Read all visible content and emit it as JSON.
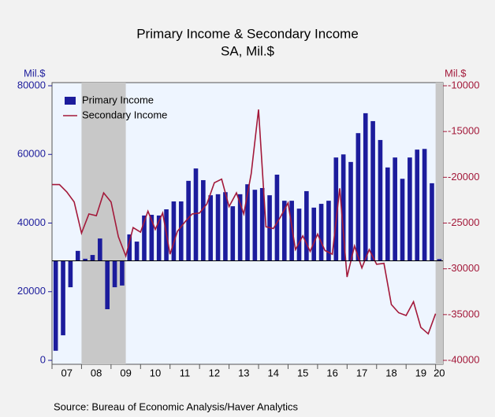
{
  "chart_data": {
    "type": "bar-line",
    "title": "Primary Income & Secondary Income",
    "subtitle": "SA, Mil.$",
    "y_label": "Mil.$",
    "y2_label": "Mil.$",
    "source": "Source:  Bureau of Economic Analysis/Haver Analytics",
    "categories": [
      "07",
      null,
      null,
      null,
      "08",
      null,
      null,
      null,
      "09",
      null,
      null,
      null,
      "10",
      null,
      null,
      null,
      "11",
      null,
      null,
      null,
      "12",
      null,
      null,
      null,
      "13",
      null,
      null,
      null,
      "14",
      null,
      null,
      null,
      "15",
      null,
      null,
      null,
      "16",
      null,
      null,
      null,
      "17",
      null,
      null,
      null,
      "18",
      null,
      null,
      null,
      "19",
      null,
      null,
      null,
      "20"
    ],
    "bar_baseline": 29000,
    "shaded": [
      [
        4,
        10
      ],
      [
        52,
        53
      ]
    ],
    "ylim": [
      0,
      80000
    ],
    "yticks": [
      0,
      20000,
      40000,
      60000,
      80000
    ],
    "y2lim": [
      -40000,
      -10000
    ],
    "y2ticks": [
      -10000,
      -15000,
      -20000,
      -25000,
      -30000,
      -35000,
      -40000
    ],
    "legend": "top-left",
    "series": [
      {
        "name": "Primary Income",
        "type": "bar",
        "color": "#1c1c9c",
        "values": [
          2800,
          7300,
          21300,
          31900,
          29600,
          30700,
          35500,
          14900,
          21300,
          21800,
          36700,
          34600,
          42200,
          42400,
          42200,
          44000,
          46300,
          46300,
          52300,
          55900,
          52500,
          48100,
          48400,
          49000,
          44900,
          48400,
          51300,
          49700,
          50200,
          48100,
          54100,
          46500,
          46500,
          44200,
          49300,
          44500,
          45600,
          46500,
          59100,
          60000,
          57800,
          66200,
          72000,
          69700,
          64200,
          56200,
          59100,
          52900,
          59100,
          61400,
          61600,
          51600,
          29500
        ]
      },
      {
        "name": "Secondary Income",
        "type": "line",
        "axis": "y2",
        "color": "#a3193a",
        "values": [
          -20800,
          -20800,
          -21600,
          -22700,
          -26100,
          -24000,
          -24200,
          -21700,
          -22700,
          -26500,
          -28600,
          -25500,
          -26000,
          -23700,
          -25700,
          -23900,
          -28400,
          -25900,
          -24900,
          -24000,
          -23900,
          -22900,
          -20600,
          -20200,
          -23200,
          -21700,
          -24000,
          -19600,
          -12600,
          -25400,
          -25600,
          -24300,
          -22800,
          -27900,
          -26400,
          -28100,
          -26200,
          -28000,
          -28400,
          -21200,
          -30900,
          -27500,
          -29900,
          -27900,
          -29500,
          -29400,
          -33900,
          -34800,
          -35100,
          -33600,
          -36400,
          -37100,
          -34900
        ]
      }
    ]
  }
}
